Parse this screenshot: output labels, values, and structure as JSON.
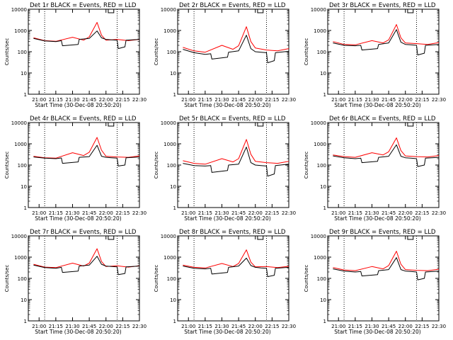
{
  "colors": {
    "events": "#000000",
    "lld": "#ff0000",
    "axis": "#000000",
    "background": "#ffffff"
  },
  "chart_data": [
    {
      "type": "line",
      "title": "Det 1r BLACK = Events, RED = LLD",
      "xlabel": "Start Time (30-Dec-08 20:50:20)",
      "ylabel": "Counts/sec",
      "x_ticks": [
        "21:00",
        "21:15",
        "21:30",
        "21:45",
        "22:00",
        "22:15",
        "22:30"
      ],
      "y_ticks": [
        "1",
        "10",
        "100",
        "1000",
        "10000"
      ],
      "ylim": [
        1,
        10000
      ],
      "yscale": "log",
      "attenuator_markers": [
        "21:05",
        "22:10"
      ],
      "series": [
        {
          "name": "Events",
          "color": "#000000",
          "x": [
            "20:55",
            "21:05",
            "21:15",
            "21:20",
            "21:21",
            "21:35",
            "21:36",
            "21:45",
            "21:52",
            "21:56",
            "22:00",
            "22:05",
            "22:10",
            "22:11",
            "22:17",
            "22:18",
            "22:30"
          ],
          "y": [
            420,
            320,
            300,
            330,
            190,
            220,
            380,
            420,
            950,
            450,
            380,
            360,
            350,
            140,
            170,
            350,
            380
          ]
        },
        {
          "name": "LLD",
          "color": "#ff0000",
          "x": [
            "20:55",
            "21:05",
            "21:15",
            "21:30",
            "21:40",
            "21:45",
            "21:52",
            "21:56",
            "22:00",
            "22:10",
            "22:20",
            "22:30"
          ],
          "y": [
            450,
            330,
            310,
            480,
            350,
            500,
            2400,
            600,
            350,
            380,
            330,
            380
          ]
        }
      ]
    },
    {
      "type": "line",
      "title": "Det 2r BLACK = Events, RED = LLD",
      "xlabel": "Start Time (30-Dec-08 20:50:20)",
      "ylabel": "Counts/sec",
      "x_ticks": [
        "21:00",
        "21:15",
        "21:30",
        "21:45",
        "22:00",
        "22:15",
        "22:30"
      ],
      "y_ticks": [
        "1",
        "10",
        "100",
        "1000",
        "10000"
      ],
      "ylim": [
        1,
        10000
      ],
      "yscale": "log",
      "attenuator_markers": [
        "21:05",
        "22:10"
      ],
      "series": [
        {
          "name": "Events",
          "color": "#000000",
          "x": [
            "20:55",
            "21:05",
            "21:15",
            "21:20",
            "21:21",
            "21:35",
            "21:36",
            "21:45",
            "21:52",
            "21:56",
            "22:00",
            "22:05",
            "22:10",
            "22:11",
            "22:17",
            "22:18",
            "22:30"
          ],
          "y": [
            130,
            90,
            75,
            80,
            45,
            55,
            95,
            110,
            600,
            140,
            100,
            95,
            90,
            30,
            38,
            90,
            105
          ]
        },
        {
          "name": "LLD",
          "color": "#ff0000",
          "x": [
            "20:55",
            "21:05",
            "21:15",
            "21:30",
            "21:40",
            "21:45",
            "21:52",
            "21:56",
            "22:00",
            "22:10",
            "22:20",
            "22:30"
          ],
          "y": [
            160,
            110,
            95,
            200,
            130,
            190,
            1500,
            300,
            150,
            120,
            110,
            140
          ]
        }
      ]
    },
    {
      "type": "line",
      "title": "Det 3r BLACK = Events, RED = LLD",
      "xlabel": "Start Time (30-Dec-08 20:50:20)",
      "ylabel": "Counts/sec",
      "x_ticks": [
        "21:00",
        "21:15",
        "21:30",
        "21:45",
        "22:00",
        "22:15",
        "22:30"
      ],
      "y_ticks": [
        "1",
        "10",
        "100",
        "1000",
        "10000"
      ],
      "ylim": [
        1,
        10000
      ],
      "yscale": "log",
      "attenuator_markers": [
        "21:05",
        "22:10"
      ],
      "series": [
        {
          "name": "Events",
          "color": "#000000",
          "x": [
            "20:55",
            "21:05",
            "21:15",
            "21:20",
            "21:21",
            "21:35",
            "21:36",
            "21:45",
            "21:52",
            "21:56",
            "22:00",
            "22:05",
            "22:10",
            "22:11",
            "22:17",
            "22:18",
            "22:30"
          ],
          "y": [
            260,
            200,
            190,
            200,
            120,
            140,
            220,
            260,
            1100,
            280,
            220,
            210,
            200,
            70,
            85,
            200,
            220
          ]
        },
        {
          "name": "LLD",
          "color": "#ff0000",
          "x": [
            "20:55",
            "21:05",
            "21:15",
            "21:30",
            "21:40",
            "21:45",
            "21:52",
            "21:56",
            "22:00",
            "22:10",
            "22:20",
            "22:30"
          ],
          "y": [
            300,
            220,
            210,
            330,
            260,
            360,
            1900,
            450,
            260,
            240,
            220,
            270
          ]
        }
      ]
    },
    {
      "type": "line",
      "title": "Det 4r BLACK = Events, RED = LLD",
      "xlabel": "Start Time (30-Dec-08 20:50:20)",
      "ylabel": "Counts/sec",
      "x_ticks": [
        "21:00",
        "21:15",
        "21:30",
        "21:45",
        "22:00",
        "22:15",
        "22:30"
      ],
      "y_ticks": [
        "1",
        "10",
        "100",
        "1000",
        "10000"
      ],
      "ylim": [
        1,
        10000
      ],
      "yscale": "log",
      "attenuator_markers": [
        "21:05",
        "22:10"
      ],
      "series": [
        {
          "name": "Events",
          "color": "#000000",
          "x": [
            "20:55",
            "21:05",
            "21:15",
            "21:20",
            "21:21",
            "21:35",
            "21:36",
            "21:45",
            "21:52",
            "21:56",
            "22:00",
            "22:05",
            "22:10",
            "22:11",
            "22:17",
            "22:18",
            "22:30"
          ],
          "y": [
            240,
            210,
            200,
            215,
            120,
            140,
            230,
            250,
            850,
            260,
            230,
            220,
            210,
            90,
            100,
            220,
            240
          ]
        },
        {
          "name": "LLD",
          "color": "#ff0000",
          "x": [
            "20:55",
            "21:05",
            "21:15",
            "21:30",
            "21:40",
            "21:45",
            "21:52",
            "21:56",
            "22:00",
            "22:10",
            "22:20",
            "22:30"
          ],
          "y": [
            260,
            220,
            210,
            380,
            280,
            400,
            2000,
            500,
            260,
            240,
            230,
            270
          ]
        }
      ]
    },
    {
      "type": "line",
      "title": "Det 5r BLACK = Events, RED = LLD",
      "xlabel": "Start Time (30-Dec-08 20:50:20)",
      "ylabel": "Counts/sec",
      "x_ticks": [
        "21:00",
        "21:15",
        "21:30",
        "21:45",
        "22:00",
        "22:15",
        "22:30"
      ],
      "y_ticks": [
        "1",
        "10",
        "100",
        "1000",
        "10000"
      ],
      "ylim": [
        1,
        10000
      ],
      "yscale": "log",
      "attenuator_markers": [
        "21:05",
        "22:10"
      ],
      "series": [
        {
          "name": "Events",
          "color": "#000000",
          "x": [
            "20:55",
            "21:05",
            "21:15",
            "21:20",
            "21:21",
            "21:35",
            "21:36",
            "21:45",
            "21:52",
            "21:56",
            "22:00",
            "22:05",
            "22:10",
            "22:11",
            "22:17",
            "22:18",
            "22:30"
          ],
          "y": [
            120,
            95,
            90,
            95,
            45,
            55,
            100,
            110,
            700,
            130,
            100,
            95,
            90,
            30,
            38,
            95,
            110
          ]
        },
        {
          "name": "LLD",
          "color": "#ff0000",
          "x": [
            "20:55",
            "21:05",
            "21:15",
            "21:30",
            "21:40",
            "21:45",
            "21:52",
            "21:56",
            "22:00",
            "22:10",
            "22:20",
            "22:30"
          ],
          "y": [
            160,
            120,
            110,
            200,
            140,
            200,
            1600,
            320,
            150,
            130,
            120,
            150
          ]
        }
      ]
    },
    {
      "type": "line",
      "title": "Det 6r BLACK = Events, RED = LLD",
      "xlabel": "Start Time (30-Dec-08 20:50:20)",
      "ylabel": "Counts/sec",
      "x_ticks": [
        "21:00",
        "21:15",
        "21:30",
        "21:45",
        "22:00",
        "22:15",
        "22:30"
      ],
      "y_ticks": [
        "1",
        "10",
        "100",
        "1000",
        "10000"
      ],
      "ylim": [
        1,
        10000
      ],
      "yscale": "log",
      "attenuator_markers": [
        "21:05",
        "22:10"
      ],
      "series": [
        {
          "name": "Events",
          "color": "#000000",
          "x": [
            "20:55",
            "21:05",
            "21:15",
            "21:20",
            "21:21",
            "21:35",
            "21:36",
            "21:45",
            "21:52",
            "21:56",
            "22:00",
            "22:05",
            "22:10",
            "22:11",
            "22:17",
            "22:18",
            "22:30"
          ],
          "y": [
            270,
            220,
            200,
            210,
            130,
            150,
            230,
            260,
            900,
            260,
            220,
            210,
            200,
            85,
            100,
            210,
            230
          ]
        },
        {
          "name": "LLD",
          "color": "#ff0000",
          "x": [
            "20:55",
            "21:05",
            "21:15",
            "21:30",
            "21:40",
            "21:45",
            "21:52",
            "21:56",
            "22:00",
            "22:10",
            "22:20",
            "22:30"
          ],
          "y": [
            300,
            250,
            230,
            380,
            300,
            420,
            1900,
            480,
            270,
            250,
            240,
            280
          ]
        }
      ]
    },
    {
      "type": "line",
      "title": "Det 7r BLACK = Events, RED = LLD",
      "xlabel": "Start Time (30-Dec-08 20:50:20)",
      "ylabel": "Counts/sec",
      "x_ticks": [
        "21:00",
        "21:15",
        "21:30",
        "21:45",
        "22:00",
        "22:15",
        "22:30"
      ],
      "y_ticks": [
        "1",
        "10",
        "100",
        "1000",
        "10000"
      ],
      "ylim": [
        1,
        10000
      ],
      "yscale": "log",
      "attenuator_markers": [
        "21:05",
        "22:10"
      ],
      "series": [
        {
          "name": "Events",
          "color": "#000000",
          "x": [
            "20:55",
            "21:05",
            "21:15",
            "21:20",
            "21:21",
            "21:35",
            "21:36",
            "21:45",
            "21:52",
            "21:56",
            "22:00",
            "22:05",
            "22:10",
            "22:11",
            "22:17",
            "22:18",
            "22:30"
          ],
          "y": [
            420,
            320,
            300,
            330,
            190,
            220,
            380,
            420,
            1100,
            460,
            380,
            360,
            350,
            150,
            170,
            350,
            380
          ]
        },
        {
          "name": "LLD",
          "color": "#ff0000",
          "x": [
            "20:55",
            "21:05",
            "21:15",
            "21:30",
            "21:40",
            "21:45",
            "21:52",
            "21:56",
            "22:00",
            "22:10",
            "22:20",
            "22:30"
          ],
          "y": [
            460,
            340,
            320,
            520,
            380,
            520,
            2500,
            620,
            360,
            390,
            340,
            390
          ]
        }
      ]
    },
    {
      "type": "line",
      "title": "Det 8r BLACK = Events, RED = LLD",
      "xlabel": "Start Time (30-Dec-08 20:50:20)",
      "ylabel": "Counts/sec",
      "x_ticks": [
        "21:00",
        "21:15",
        "21:30",
        "21:45",
        "22:00",
        "22:15",
        "22:30"
      ],
      "y_ticks": [
        "1",
        "10",
        "100",
        "1000",
        "10000"
      ],
      "ylim": [
        1,
        10000
      ],
      "yscale": "log",
      "attenuator_markers": [
        "21:05",
        "22:10"
      ],
      "series": [
        {
          "name": "Events",
          "color": "#000000",
          "x": [
            "20:55",
            "21:05",
            "21:15",
            "21:20",
            "21:21",
            "21:35",
            "21:36",
            "21:45",
            "21:52",
            "21:56",
            "22:00",
            "22:05",
            "22:10",
            "22:11",
            "22:17",
            "22:18",
            "22:30"
          ],
          "y": [
            380,
            300,
            280,
            300,
            160,
            190,
            330,
            380,
            900,
            400,
            330,
            310,
            300,
            120,
            140,
            300,
            330
          ]
        },
        {
          "name": "LLD",
          "color": "#ff0000",
          "x": [
            "20:55",
            "21:05",
            "21:15",
            "21:30",
            "21:40",
            "21:45",
            "21:52",
            "21:56",
            "22:00",
            "22:10",
            "22:20",
            "22:30"
          ],
          "y": [
            420,
            330,
            310,
            500,
            360,
            500,
            2200,
            580,
            350,
            360,
            320,
            370
          ]
        }
      ]
    },
    {
      "type": "line",
      "title": "Det 9r BLACK = Events, RED = LLD",
      "xlabel": "Start Time (30-Dec-08 20:50:20)",
      "ylabel": "Counts/sec",
      "x_ticks": [
        "21:00",
        "21:15",
        "21:30",
        "21:45",
        "22:00",
        "22:15",
        "22:30"
      ],
      "y_ticks": [
        "1",
        "10",
        "100",
        "1000",
        "10000"
      ],
      "ylim": [
        1,
        10000
      ],
      "yscale": "log",
      "attenuator_markers": [
        "21:05",
        "22:10"
      ],
      "series": [
        {
          "name": "Events",
          "color": "#000000",
          "x": [
            "20:55",
            "21:05",
            "21:15",
            "21:20",
            "21:21",
            "21:35",
            "21:36",
            "21:45",
            "21:52",
            "21:56",
            "22:00",
            "22:05",
            "22:10",
            "22:11",
            "22:17",
            "22:18",
            "22:30"
          ],
          "y": [
            280,
            220,
            200,
            210,
            130,
            150,
            230,
            260,
            950,
            260,
            220,
            210,
            200,
            85,
            100,
            200,
            220
          ]
        },
        {
          "name": "LLD",
          "color": "#ff0000",
          "x": [
            "20:55",
            "21:05",
            "21:15",
            "21:30",
            "21:40",
            "21:45",
            "21:52",
            "21:56",
            "22:00",
            "22:10",
            "22:20",
            "22:30"
          ],
          "y": [
            320,
            250,
            230,
            360,
            280,
            400,
            1900,
            460,
            260,
            240,
            230,
            270
          ]
        }
      ]
    }
  ]
}
